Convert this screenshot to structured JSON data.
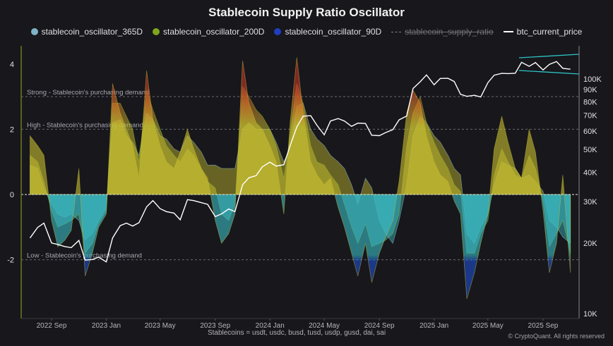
{
  "title": "Stablecoin Supply Ratio Oscillator",
  "legend": [
    {
      "label": "stablecoin_oscillator_365D",
      "color": "#7fb3c8",
      "marker": "dot",
      "hidden": false
    },
    {
      "label": "stablecoin_oscillator_200D",
      "color": "#7fa61e",
      "marker": "dot",
      "hidden": false
    },
    {
      "label": "stablecoin_oscillator_90D",
      "color": "#1f3fbf",
      "marker": "dot",
      "hidden": false
    },
    {
      "label": "stablecoin_supply_ratio",
      "color": "#888888",
      "marker": "dash",
      "hidden": true
    },
    {
      "label": "btc_current_price",
      "color": "#ffffff",
      "marker": "line",
      "hidden": false
    }
  ],
  "footer": "Stablecoins = usdt, usdc, busd, tusd, usdp, gusd, dai, sai",
  "copyright": "© CryptoQuant. All rights reserved",
  "chart_data": {
    "type": "area",
    "title": "Stablecoin Supply Ratio Oscillator",
    "x_ticks": [
      "2022 Sep",
      "2023 Jan",
      "2023 May",
      "2023 Sep",
      "2024 Jan",
      "2024 May",
      "2024 Sep",
      "2025 Jan",
      "2025 May",
      "2025 Sep"
    ],
    "x_tick_dates": [
      "2022-09-01",
      "2023-01-01",
      "2023-05-01",
      "2023-09-01",
      "2024-01-01",
      "2024-05-01",
      "2024-09-01",
      "2025-01-01",
      "2025-05-01",
      "2025-09-01"
    ],
    "y_left": {
      "ticks": [
        4,
        2,
        0,
        -2
      ],
      "range": [
        -3.6,
        4.5
      ]
    },
    "y_right": {
      "scale": "log",
      "ticks": [
        100000,
        90000,
        80000,
        70000,
        60000,
        50000,
        40000,
        30000,
        20000,
        10000
      ],
      "tick_labels": [
        "100K",
        "90K",
        "80K",
        "70K",
        "60K",
        "50K",
        "40K",
        "30K",
        "20K",
        "10K"
      ]
    },
    "reference_lines": [
      {
        "value": 3,
        "label": "Strong - Stablecoin's purchasing demand"
      },
      {
        "value": 2,
        "label": "High - Stablecoin's purchasing demand"
      },
      {
        "value": 0,
        "label": ""
      },
      {
        "value": -2,
        "label": "Low - Stablecoin's purchasing demand"
      }
    ],
    "color_scale": {
      "very_high": "#c8332a",
      "high": "#d9782a",
      "positive": "#c9c030",
      "negative": "#3bbcc4",
      "very_low": "#1e4fd0"
    },
    "dates": [
      "2022-07-15",
      "2022-08-01",
      "2022-08-15",
      "2022-09-01",
      "2022-09-15",
      "2022-10-01",
      "2022-10-15",
      "2022-11-01",
      "2022-11-15",
      "2022-12-01",
      "2022-12-15",
      "2023-01-01",
      "2023-01-15",
      "2023-02-01",
      "2023-02-15",
      "2023-03-01",
      "2023-03-15",
      "2023-04-01",
      "2023-04-15",
      "2023-05-01",
      "2023-05-15",
      "2023-06-01",
      "2023-06-15",
      "2023-07-01",
      "2023-07-15",
      "2023-08-01",
      "2023-08-15",
      "2023-09-01",
      "2023-09-15",
      "2023-10-01",
      "2023-10-15",
      "2023-11-01",
      "2023-11-15",
      "2023-12-01",
      "2023-12-15",
      "2024-01-01",
      "2024-01-15",
      "2024-02-01",
      "2024-02-15",
      "2024-03-01",
      "2024-03-15",
      "2024-04-01",
      "2024-04-15",
      "2024-05-01",
      "2024-05-15",
      "2024-06-01",
      "2024-06-15",
      "2024-07-01",
      "2024-07-15",
      "2024-08-01",
      "2024-08-15",
      "2024-09-01",
      "2024-09-15",
      "2024-10-01",
      "2024-10-15",
      "2024-11-01",
      "2024-11-15",
      "2024-12-01",
      "2024-12-15",
      "2025-01-01",
      "2025-01-15",
      "2025-02-01",
      "2025-02-15",
      "2025-03-01",
      "2025-03-15",
      "2025-04-01",
      "2025-04-15",
      "2025-05-01",
      "2025-05-15",
      "2025-06-01",
      "2025-06-15",
      "2025-07-01",
      "2025-07-15",
      "2025-08-01",
      "2025-08-15",
      "2025-09-01",
      "2025-09-15",
      "2025-10-01",
      "2025-10-15",
      "2025-11-01"
    ],
    "series": [
      {
        "name": "stablecoin_oscillator_365D",
        "axis": "left",
        "values": [
          0.9,
          0.8,
          0.2,
          -0.3,
          -0.6,
          -0.7,
          -0.6,
          -0.8,
          -1.4,
          -1.2,
          -0.8,
          -0.4,
          2.2,
          2.3,
          1.8,
          1.6,
          1.2,
          2.5,
          2.3,
          1.8,
          1.7,
          1.4,
          1.3,
          1.8,
          1.6,
          1.3,
          0.9,
          0.9,
          0.8,
          0.8,
          0.8,
          2.0,
          2.2,
          2.0,
          2.0,
          2.0,
          1.6,
          1.0,
          1.4,
          2.7,
          2.8,
          2.0,
          1.7,
          1.5,
          1.2,
          1.0,
          0.8,
          0.3,
          -0.3,
          0.5,
          0.2,
          -0.8,
          -1.2,
          -1.5,
          -0.8,
          0.3,
          1.8,
          2.4,
          2.2,
          1.8,
          1.6,
          1.2,
          0.8,
          0.6,
          -1.2,
          -1.5,
          -1.0,
          -0.6,
          0.3,
          1.0,
          0.9,
          0.8,
          0.5,
          0.6,
          0.4,
          0.1,
          -0.8,
          -1.0,
          -1.3,
          -1.5
        ]
      },
      {
        "name": "stablecoin_oscillator_200D",
        "axis": "left",
        "values": [
          1.2,
          1.0,
          0.4,
          -0.5,
          -1.0,
          -0.9,
          -0.8,
          -0.6,
          -1.8,
          -1.5,
          -0.9,
          -0.5,
          2.8,
          2.8,
          2.4,
          2.0,
          1.0,
          3.2,
          2.6,
          2.0,
          1.5,
          1.2,
          1.0,
          1.4,
          1.2,
          0.8,
          0.4,
          0.2,
          -0.6,
          -0.8,
          -0.3,
          3.3,
          3.0,
          2.6,
          2.4,
          2.0,
          1.5,
          0.5,
          1.8,
          3.4,
          2.8,
          1.5,
          1.0,
          0.9,
          0.6,
          0.3,
          -0.3,
          -1.0,
          -1.5,
          -0.9,
          -1.6,
          -1.5,
          -1.4,
          -1.2,
          -0.6,
          1.5,
          2.5,
          3.0,
          2.2,
          1.6,
          1.2,
          0.8,
          0.3,
          0.1,
          -1.8,
          -1.8,
          -1.2,
          -0.8,
          0.6,
          1.4,
          1.0,
          0.6,
          0.5,
          1.2,
          0.8,
          -0.2,
          -1.6,
          -1.2,
          -0.8,
          -1.8
        ]
      },
      {
        "name": "stablecoin_oscillator_90D",
        "axis": "left",
        "values": [
          1.8,
          1.5,
          1.2,
          -0.8,
          -1.6,
          -1.4,
          -1.1,
          0.8,
          -2.5,
          -1.8,
          -1.0,
          -0.6,
          3.4,
          2.5,
          2.0,
          1.5,
          0.5,
          3.8,
          2.3,
          1.5,
          1.0,
          0.8,
          1.3,
          2.0,
          1.4,
          0.8,
          0.5,
          -0.8,
          -1.5,
          -1.2,
          -0.6,
          4.1,
          2.8,
          2.2,
          2.0,
          1.5,
          1.0,
          -0.6,
          2.2,
          4.2,
          2.5,
          1.0,
          0.6,
          0.3,
          0.5,
          -0.4,
          -1.0,
          -1.8,
          -2.5,
          -1.5,
          -2.7,
          -1.8,
          -1.3,
          -0.8,
          0.4,
          2.5,
          3.2,
          2.8,
          1.8,
          1.0,
          0.6,
          0.4,
          -0.2,
          -0.6,
          -3.2,
          -2.4,
          -1.5,
          -0.6,
          1.4,
          2.4,
          1.6,
          0.8,
          0.5,
          2.0,
          1.3,
          -0.5,
          -2.4,
          -1.5,
          0.6,
          -2.4
        ]
      },
      {
        "name": "btc_current_price",
        "axis": "right",
        "values": [
          21000,
          23300,
          24300,
          20000,
          19700,
          19300,
          19100,
          20500,
          16900,
          17000,
          17400,
          16600,
          21000,
          23700,
          24300,
          23600,
          24400,
          28500,
          30300,
          28000,
          27200,
          26800,
          25100,
          30600,
          30300,
          29700,
          29200,
          25900,
          26600,
          27900,
          27200,
          35400,
          37900,
          38700,
          42200,
          44200,
          42500,
          43100,
          51900,
          62400,
          69400,
          69700,
          63400,
          57800,
          66200,
          67800,
          66200,
          62800,
          64800,
          64600,
          57500,
          57300,
          59100,
          60800,
          66900,
          69500,
          91000,
          97300,
          104000,
          94400,
          100500,
          100600,
          97500,
          86000,
          84300,
          85200,
          83700,
          96500,
          103700,
          105600,
          105400,
          105700,
          117700,
          113200,
          117400,
          109200,
          115400,
          118600,
          111000,
          110000
        ]
      }
    ]
  }
}
